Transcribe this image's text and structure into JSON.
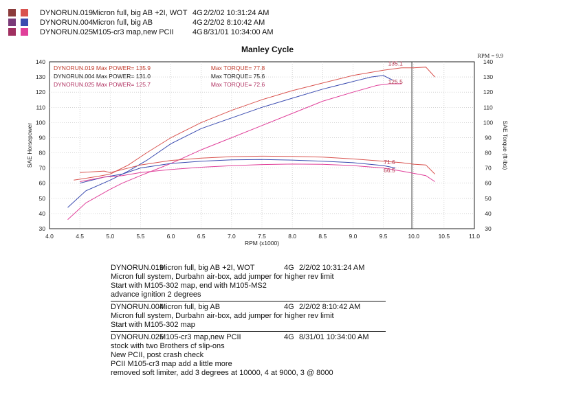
{
  "runs": [
    {
      "id": "DYNORUN.019",
      "desc": "Micron full, big AB  +2I, WOT",
      "gear": "4G",
      "date": "2/2/02 10:31:24 AM",
      "colors": [
        "#8b3b3b",
        "#d9534f"
      ]
    },
    {
      "id": "DYNORUN.004",
      "desc": "Micron full, big AB",
      "gear": "4G",
      "date": "2/2/02 8:10:42 AM",
      "colors": [
        "#7a3a78",
        "#3a4bb0"
      ]
    },
    {
      "id": "DYNORUN.025",
      "desc": "M105-cr3 map,new PCII",
      "gear": "4G",
      "date": "8/31/01 10:34:00 AM",
      "colors": [
        "#a03060",
        "#e0409a"
      ]
    }
  ],
  "chart_data": {
    "type": "line",
    "title": "Manley Cycle",
    "xlabel": "RPM (x1000)",
    "ylabel": "SAE Horsepower",
    "y2label": "SAE Torque (ft-lbs)",
    "rpm_note": "RPM = 9.9",
    "xlim": [
      4.0,
      11.0
    ],
    "ylim": [
      30,
      140
    ],
    "x_ticks": [
      "4.0",
      "4.5",
      "5.0",
      "5.5",
      "6.0",
      "6.5",
      "7.0",
      "7.5",
      "8.0",
      "8.5",
      "9.0",
      "9.5",
      "10.0",
      "10.5",
      "11.0"
    ],
    "y_ticks": [
      "30",
      "40",
      "50",
      "60",
      "70",
      "80",
      "90",
      "100",
      "110",
      "120",
      "130",
      "140"
    ],
    "grid": true,
    "max_labels": [
      {
        "text": "DYNORUN.019  Max POWER= 135.9",
        "torque": "Max TORQUE= 77.8",
        "color": "#c0392b"
      },
      {
        "text": "DYNORUN.004  Max POWER= 131.0",
        "torque": "Max TORQUE= 75.6",
        "color": "#222222"
      },
      {
        "text": "DYNORUN.025  Max POWER= 125.7",
        "torque": "Max TORQUE= 72.6",
        "color": "#b03060"
      }
    ],
    "annotations": [
      {
        "text": "135.1",
        "x": 9.7,
        "y": 137.5
      },
      {
        "text": "125.5",
        "x": 9.7,
        "y": 125.5
      },
      {
        "text": "71.6",
        "x": 9.6,
        "y": 72.5
      },
      {
        "text": "66.5",
        "x": 9.6,
        "y": 67.2
      }
    ],
    "series": [
      {
        "color": "#d9534f",
        "x": [
          4.4,
          4.8,
          5.0,
          5.3,
          5.6,
          6.0,
          6.5,
          7.0,
          7.5,
          8.0,
          8.5,
          9.0,
          9.5,
          9.8,
          10.0,
          10.2,
          10.35
        ],
        "y": [
          62,
          64.5,
          66,
          72,
          80,
          90,
          100,
          108,
          115,
          121,
          126,
          131,
          134.5,
          136,
          136,
          136.5,
          130
        ]
      },
      {
        "color": "#3a4bb0",
        "x": [
          4.3,
          4.6,
          5.0,
          5.3,
          5.6,
          6.0,
          6.5,
          7.0,
          7.5,
          8.0,
          8.5,
          9.0,
          9.3,
          9.5,
          9.65
        ],
        "y": [
          44,
          55,
          62,
          68,
          75,
          86,
          96,
          103,
          110,
          116,
          122,
          127,
          130,
          131,
          128
        ]
      },
      {
        "color": "#e0409a",
        "x": [
          4.3,
          4.6,
          5.0,
          5.2,
          5.5,
          6.0,
          6.5,
          7.0,
          7.5,
          8.0,
          8.5,
          9.0,
          9.4,
          9.6,
          9.8
        ],
        "y": [
          36,
          47,
          56,
          60,
          65,
          73,
          82,
          90,
          98,
          106,
          114,
          120,
          124.5,
          125.5,
          125.5
        ]
      },
      {
        "color": "#d9534f",
        "x": [
          4.5,
          4.9,
          5.0,
          5.5,
          6.0,
          6.5,
          7.0,
          7.5,
          8.0,
          8.5,
          9.0,
          9.5,
          9.8,
          10.0,
          10.2,
          10.35
        ],
        "y": [
          67,
          68,
          67,
          72,
          75,
          76.5,
          77.5,
          77.8,
          77.6,
          77.2,
          76,
          74.5,
          73.5,
          72.5,
          72,
          66
        ]
      },
      {
        "color": "#3a4bb0",
        "x": [
          4.5,
          4.9,
          5.2,
          5.5,
          6.0,
          6.5,
          7.0,
          7.5,
          8.0,
          8.5,
          9.0,
          9.5,
          9.7
        ],
        "y": [
          60,
          64,
          66,
          70,
          73,
          74.5,
          75.4,
          75.6,
          75.2,
          74.5,
          73.5,
          71.6,
          70
        ]
      },
      {
        "color": "#e0409a",
        "x": [
          4.5,
          4.9,
          5.2,
          5.5,
          6.0,
          6.5,
          7.0,
          7.5,
          8.0,
          8.5,
          9.0,
          9.5,
          9.8,
          10.0,
          10.2,
          10.35
        ],
        "y": [
          61,
          64,
          65,
          67,
          69,
          70.5,
          71.5,
          72.3,
          72.6,
          72.4,
          71.6,
          70,
          68,
          66.5,
          65,
          61
        ]
      }
    ]
  },
  "notes": [
    {
      "id": "DYNORUN.019",
      "desc": "Micron full, big AB  +2I, WOT",
      "gear": "4G",
      "date": "2/2/02 10:31:24 AM",
      "lines": [
        "Micron full system, Durbahn air-box, add jumper for higher rev limit",
        "Start with M105-302 map, end with M105-MS2",
        "advance ignition 2 degrees"
      ]
    },
    {
      "id": "DYNORUN.004",
      "desc": "Micron full, big AB",
      "gear": "4G",
      "date": "2/2/02 8:10:42 AM",
      "lines": [
        "Micron full system, Durbahn air-box, add jumper for higher rev limit",
        "Start with M105-302 map"
      ]
    },
    {
      "id": "DYNORUN.025",
      "desc": "M105-cr3 map,new PCII",
      "gear": "4G",
      "date": "8/31/01 10:34:00 AM",
      "lines": [
        "stock with two Brothers cf slip-ons",
        "New PCII, post crash check",
        "PCII  M105-cr3 map add a little more",
        "removed soft limiter, add 3 degrees at 10000, 4 at 9000, 3 @ 8000"
      ]
    }
  ]
}
